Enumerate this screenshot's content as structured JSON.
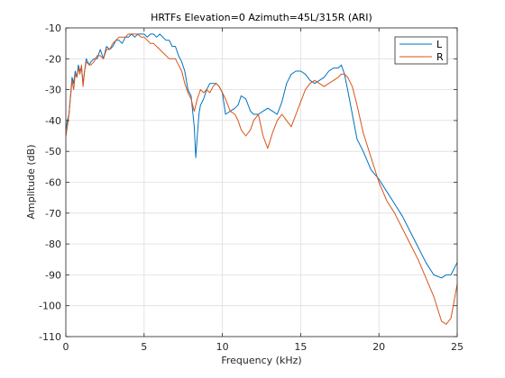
{
  "chart_data": {
    "type": "line",
    "title": "HRTFs Elevation=0 Azimuth=45L/315R (ARI)",
    "xlabel": "Frequency (kHz)",
    "ylabel": "Amplitude (dB)",
    "xlim": [
      0,
      25
    ],
    "ylim": [
      -110,
      -10
    ],
    "xticks": [
      0,
      5,
      10,
      15,
      20,
      25
    ],
    "yticks": [
      -10,
      -20,
      -30,
      -40,
      -50,
      -60,
      -70,
      -80,
      -90,
      -100,
      -110
    ],
    "grid": true,
    "legend_position": "top-right",
    "series": [
      {
        "name": "L",
        "color": "#0072BD",
        "x": [
          0,
          0.1,
          0.2,
          0.4,
          0.5,
          0.6,
          0.7,
          0.8,
          0.9,
          1.0,
          1.1,
          1.2,
          1.3,
          1.5,
          1.6,
          1.8,
          2.0,
          2.2,
          2.4,
          2.6,
          2.8,
          3.0,
          3.2,
          3.4,
          3.6,
          3.8,
          4.0,
          4.2,
          4.4,
          4.6,
          4.8,
          5.0,
          5.2,
          5.4,
          5.6,
          5.8,
          6.0,
          6.2,
          6.4,
          6.6,
          6.8,
          7.0,
          7.2,
          7.4,
          7.6,
          7.8,
          8.0,
          8.2,
          8.3,
          8.4,
          8.5,
          8.6,
          8.8,
          9.0,
          9.2,
          9.4,
          9.6,
          9.8,
          10.0,
          10.2,
          10.5,
          10.8,
          11.0,
          11.2,
          11.5,
          11.8,
          12.0,
          12.3,
          12.6,
          12.9,
          13.2,
          13.5,
          13.8,
          14.1,
          14.4,
          14.7,
          15.0,
          15.3,
          15.6,
          15.9,
          16.2,
          16.5,
          16.8,
          17.1,
          17.4,
          17.6,
          17.8,
          18.0,
          18.3,
          18.6,
          19.0,
          19.5,
          20.0,
          20.5,
          21.0,
          21.5,
          22.0,
          22.5,
          23.0,
          23.5,
          24.0,
          24.3,
          24.6,
          25.0
        ],
        "y": [
          -43,
          -40,
          -38,
          -26,
          -28,
          -24,
          -26,
          -22,
          -24,
          -23,
          -28,
          -24,
          -20,
          -22,
          -21,
          -20,
          -20,
          -17,
          -20,
          -16,
          -17,
          -16,
          -14,
          -14,
          -15,
          -13,
          -13,
          -12,
          -13,
          -12,
          -12,
          -12,
          -13,
          -12,
          -12,
          -13,
          -12,
          -13,
          -14,
          -14,
          -16,
          -16,
          -19,
          -21,
          -24,
          -30,
          -32,
          -42,
          -52,
          -45,
          -38,
          -35,
          -33,
          -30,
          -28,
          -28,
          -28,
          -29,
          -31,
          -38,
          -37,
          -36,
          -35,
          -32,
          -33,
          -37,
          -38,
          -38,
          -37,
          -36,
          -37,
          -38,
          -34,
          -28,
          -25,
          -24,
          -24,
          -25,
          -27,
          -28,
          -27,
          -26,
          -24,
          -23,
          -23,
          -22,
          -25,
          -30,
          -38,
          -46,
          -50,
          -56,
          -59,
          -63,
          -67,
          -71,
          -76,
          -81,
          -86,
          -90,
          -91,
          -90,
          -90,
          -86
        ]
      },
      {
        "name": "R",
        "color": "#D95319",
        "x": [
          0,
          0.1,
          0.2,
          0.4,
          0.5,
          0.6,
          0.7,
          0.8,
          0.9,
          1.0,
          1.1,
          1.2,
          1.3,
          1.5,
          1.6,
          1.8,
          2.0,
          2.2,
          2.4,
          2.6,
          2.8,
          3.0,
          3.2,
          3.4,
          3.6,
          3.8,
          4.0,
          4.2,
          4.4,
          4.6,
          4.8,
          5.0,
          5.2,
          5.4,
          5.6,
          5.8,
          6.0,
          6.2,
          6.4,
          6.6,
          6.8,
          7.0,
          7.2,
          7.4,
          7.6,
          7.8,
          8.0,
          8.2,
          8.4,
          8.6,
          8.8,
          9.0,
          9.2,
          9.4,
          9.6,
          9.8,
          10.0,
          10.2,
          10.5,
          10.8,
          11.0,
          11.2,
          11.5,
          11.8,
          12.0,
          12.3,
          12.6,
          12.9,
          13.2,
          13.5,
          13.8,
          14.1,
          14.4,
          14.7,
          15.0,
          15.3,
          15.6,
          15.9,
          16.2,
          16.5,
          16.8,
          17.1,
          17.4,
          17.6,
          17.8,
          18.0,
          18.3,
          18.6,
          19.0,
          19.5,
          20.0,
          20.5,
          21.0,
          21.5,
          22.0,
          22.5,
          23.0,
          23.5,
          24.0,
          24.3,
          24.6,
          25.0
        ],
        "y": [
          -45,
          -42,
          -38,
          -27,
          -30,
          -25,
          -26,
          -23,
          -25,
          -22,
          -29,
          -24,
          -21,
          -22,
          -22,
          -21,
          -19,
          -19,
          -20,
          -17,
          -17,
          -15,
          -14,
          -13,
          -13,
          -13,
          -12,
          -12,
          -12,
          -12,
          -13,
          -13,
          -14,
          -15,
          -15,
          -16,
          -17,
          -18,
          -19,
          -20,
          -20,
          -20,
          -22,
          -24,
          -28,
          -31,
          -33,
          -37,
          -33,
          -30,
          -31,
          -30,
          -31,
          -29,
          -28,
          -29,
          -31,
          -33,
          -37,
          -38,
          -40,
          -43,
          -45,
          -43,
          -40,
          -38,
          -45,
          -49,
          -44,
          -40,
          -38,
          -40,
          -42,
          -38,
          -34,
          -30,
          -28,
          -27,
          -28,
          -29,
          -28,
          -27,
          -26,
          -25,
          -25,
          -26,
          -29,
          -35,
          -44,
          -52,
          -60,
          -66,
          -70,
          -75,
          -80,
          -85,
          -91,
          -97,
          -105,
          -106,
          -104,
          -93
        ]
      }
    ]
  }
}
